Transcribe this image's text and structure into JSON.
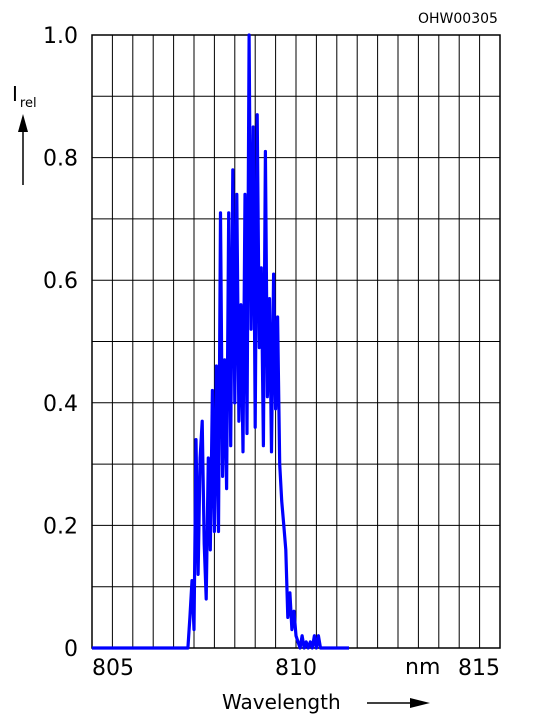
{
  "figure_code": "OHW00305",
  "chart_data": {
    "type": "line",
    "title": "",
    "xlabel": "Wavelength",
    "xunit": "nm",
    "ylabel_main": "I",
    "ylabel_sub": "rel",
    "xlim": [
      805,
      815
    ],
    "ylim": [
      0,
      1.0
    ],
    "x_ticks": [
      805,
      810,
      815
    ],
    "x_tick_labels": [
      "805",
      "810",
      "815"
    ],
    "y_ticks": [
      0,
      0.2,
      0.4,
      0.6,
      0.8,
      1.0
    ],
    "y_tick_labels": [
      "0",
      "0.2",
      "0.4",
      "0.6",
      "0.8",
      "1.0"
    ],
    "grid": true,
    "x_grid_step": 0.5,
    "y_grid_step": 0.1,
    "line_color": "#0000ff",
    "series": [
      {
        "x": [
          805.0,
          807.35,
          807.4,
          807.45,
          807.5,
          807.55,
          807.6,
          807.65,
          807.7,
          807.75,
          807.8,
          807.85,
          807.9,
          807.95,
          808.0,
          808.05,
          808.1,
          808.15,
          808.2,
          808.25,
          808.3,
          808.35,
          808.4,
          808.45,
          808.5,
          808.55,
          808.6,
          808.65,
          808.7,
          808.75,
          808.8,
          808.85,
          808.9,
          808.95,
          809.0,
          809.05,
          809.1,
          809.15,
          809.2,
          809.25,
          809.3,
          809.35,
          809.4,
          809.45,
          809.5,
          809.55,
          809.6,
          809.65,
          809.7,
          809.75,
          809.8,
          809.85,
          809.9,
          809.95,
          810.0,
          810.05,
          810.1,
          810.15,
          810.2,
          810.25,
          810.3,
          810.35,
          810.4,
          810.45,
          810.5,
          810.55,
          810.6,
          810.65,
          810.7,
          811.3
        ],
        "y": [
          0,
          0,
          0.05,
          0.11,
          0.03,
          0.34,
          0.12,
          0.31,
          0.37,
          0.17,
          0.08,
          0.31,
          0.16,
          0.42,
          0.19,
          0.46,
          0.19,
          0.71,
          0.28,
          0.47,
          0.26,
          0.71,
          0.33,
          0.78,
          0.4,
          0.74,
          0.37,
          0.56,
          0.32,
          0.74,
          0.35,
          1.0,
          0.52,
          0.85,
          0.36,
          0.87,
          0.49,
          0.62,
          0.33,
          0.81,
          0.41,
          0.57,
          0.32,
          0.61,
          0.39,
          0.54,
          0.3,
          0.24,
          0.2,
          0.16,
          0.05,
          0.09,
          0.03,
          0.06,
          0.02,
          0.01,
          0.0,
          0.02,
          0.0,
          0.01,
          0.0,
          0.01,
          0.0,
          0.02,
          0.0,
          0.02,
          0.0,
          0.0,
          0.0,
          0.0
        ]
      }
    ]
  }
}
